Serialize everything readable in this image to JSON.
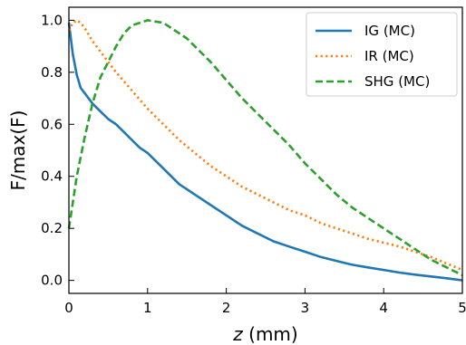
{
  "chart_data": {
    "type": "line",
    "xlabel": {
      "var": "z",
      "unit": " (mm)"
    },
    "ylabel": "F/max(F)",
    "xlim": [
      0,
      5
    ],
    "ylim": [
      -0.05,
      1.05
    ],
    "xticks": [
      0,
      1,
      2,
      3,
      4,
      5
    ],
    "xtick_labels": [
      "0",
      "1",
      "2",
      "3",
      "4",
      "5"
    ],
    "yticks": [
      0.0,
      0.2,
      0.4,
      0.6,
      0.8,
      1.0
    ],
    "ytick_labels": [
      "0.0",
      "0.2",
      "0.4",
      "0.6",
      "0.8",
      "1.0"
    ],
    "grid": false,
    "legend_position": "top-right",
    "series": [
      {
        "name": "IG (MC)",
        "color": "#1f77b4",
        "style": "solid",
        "x": [
          0,
          0.05,
          0.1,
          0.15,
          0.2,
          0.3,
          0.4,
          0.5,
          0.6,
          0.7,
          0.8,
          0.9,
          1.0,
          1.2,
          1.4,
          1.6,
          1.8,
          2.0,
          2.2,
          2.4,
          2.6,
          2.8,
          3.0,
          3.2,
          3.4,
          3.6,
          3.8,
          4.0,
          4.2,
          4.4,
          4.6,
          4.8,
          5.0
        ],
        "y": [
          0.99,
          0.87,
          0.79,
          0.74,
          0.72,
          0.68,
          0.65,
          0.62,
          0.6,
          0.57,
          0.54,
          0.51,
          0.49,
          0.43,
          0.37,
          0.33,
          0.29,
          0.25,
          0.21,
          0.18,
          0.15,
          0.13,
          0.11,
          0.09,
          0.075,
          0.06,
          0.05,
          0.04,
          0.03,
          0.022,
          0.015,
          0.008,
          0.0
        ]
      },
      {
        "name": "IR (MC)",
        "color": "#ff7f0e",
        "style": "dotted",
        "x": [
          0,
          0.05,
          0.1,
          0.15,
          0.2,
          0.3,
          0.4,
          0.5,
          0.6,
          0.8,
          1.0,
          1.2,
          1.4,
          1.6,
          1.8,
          2.0,
          2.2,
          2.4,
          2.6,
          2.8,
          3.0,
          3.2,
          3.4,
          3.6,
          3.8,
          4.0,
          4.2,
          4.4,
          4.6,
          4.8,
          5.0
        ],
        "y": [
          0.96,
          0.99,
          1.0,
          0.99,
          0.97,
          0.92,
          0.88,
          0.84,
          0.8,
          0.73,
          0.66,
          0.6,
          0.54,
          0.49,
          0.44,
          0.4,
          0.36,
          0.33,
          0.3,
          0.27,
          0.25,
          0.22,
          0.2,
          0.18,
          0.16,
          0.145,
          0.13,
          0.11,
          0.09,
          0.065,
          0.04
        ]
      },
      {
        "name": "SHG (MC)",
        "color": "#2ca02c",
        "style": "dashed",
        "x": [
          0,
          0.1,
          0.2,
          0.3,
          0.4,
          0.5,
          0.6,
          0.7,
          0.8,
          0.9,
          1.0,
          1.1,
          1.2,
          1.3,
          1.4,
          1.5,
          1.6,
          1.8,
          2.0,
          2.2,
          2.4,
          2.6,
          2.8,
          3.0,
          3.2,
          3.4,
          3.6,
          3.8,
          4.0,
          4.2,
          4.4,
          4.6,
          4.8,
          5.0
        ],
        "y": [
          0.2,
          0.4,
          0.55,
          0.68,
          0.78,
          0.84,
          0.9,
          0.95,
          0.98,
          0.99,
          1.0,
          0.995,
          0.99,
          0.97,
          0.95,
          0.93,
          0.9,
          0.84,
          0.77,
          0.7,
          0.64,
          0.58,
          0.52,
          0.45,
          0.39,
          0.33,
          0.28,
          0.24,
          0.2,
          0.16,
          0.12,
          0.08,
          0.05,
          0.02
        ]
      }
    ]
  }
}
